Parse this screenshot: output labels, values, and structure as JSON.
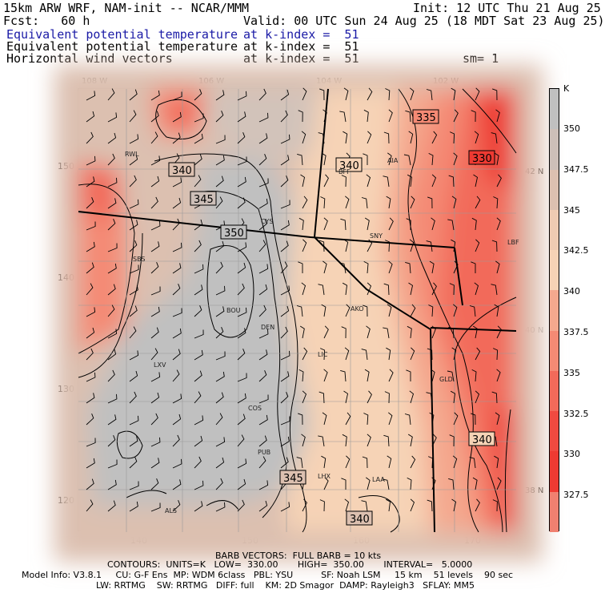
{
  "header": {
    "model": "15km ARW WRF, NAM-init -- NCAR/MMM",
    "init": "Init: 12 UTC Thu 21 Aug 25",
    "fcst": "Fcst:   60 h",
    "valid": "Valid: 00 UTC Sun 24 Aug 25 (18 MDT Sat 23 Aug 25)",
    "field1": "Equivalent potential temperature",
    "field1_level": "at k-index =  51",
    "field2": "Equivalent potential temperature",
    "field2_level": "at k-index =  51",
    "field3": "Horizontal wind vectors",
    "field3_level": "at k-index =  51",
    "smooth": "sm= 1"
  },
  "lon_ticks": [
    "108 W",
    "106 W",
    "104 W",
    "102 W"
  ],
  "lat_ticks": [
    "42 N",
    "40 N",
    "38 N"
  ],
  "grid_x_ticks": [
    "140",
    "150",
    "160",
    "170"
  ],
  "grid_y_ticks": [
    "150",
    "140",
    "130",
    "120"
  ],
  "stations": [
    "RWL",
    "CYS",
    "BFF",
    "AIA",
    "SNY",
    "LBF",
    "SBS",
    "BOU",
    "DEN",
    "AKO",
    "LXV",
    "LIC",
    "GLD",
    "COS",
    "PUB",
    "LHX",
    "LAA",
    "ALS"
  ],
  "contour_labels": [
    "335",
    "330",
    "340",
    "340",
    "345",
    "350",
    "340",
    "345",
    "340"
  ],
  "colorbar": {
    "unit": "K",
    "labels": [
      "350",
      "347.5",
      "345",
      "342.5",
      "340",
      "337.5",
      "335",
      "332.5",
      "330",
      "327.5"
    ],
    "colors": [
      "#c0c0c0",
      "#cdbfb8",
      "#dcc0b0",
      "#efcbb2",
      "#f6d3b6",
      "#f4a88e",
      "#f48a74",
      "#f26a5a",
      "#f04a40",
      "#ee3a32",
      "#f08070"
    ]
  },
  "footer": {
    "barb": "BARB VECTORS:  FULL BARB = 10 kts",
    "contours": "CONTOURS:  UNITS=K   LOW=  330.00       HIGH=  350.00       INTERVAL=   5.0000",
    "model_info": "Model Info: V3.8.1     CU: G-F Ens  MP: WDM 6class   PBL: YSU          SF: Noah LSM     15 km    51 levels    90 sec",
    "physics": "LW: RRTMG    SW: RRTMG   DIFF: full    KM: 2D Smagor  DAMP: Rayleigh3   SFLAY: MM5"
  }
}
